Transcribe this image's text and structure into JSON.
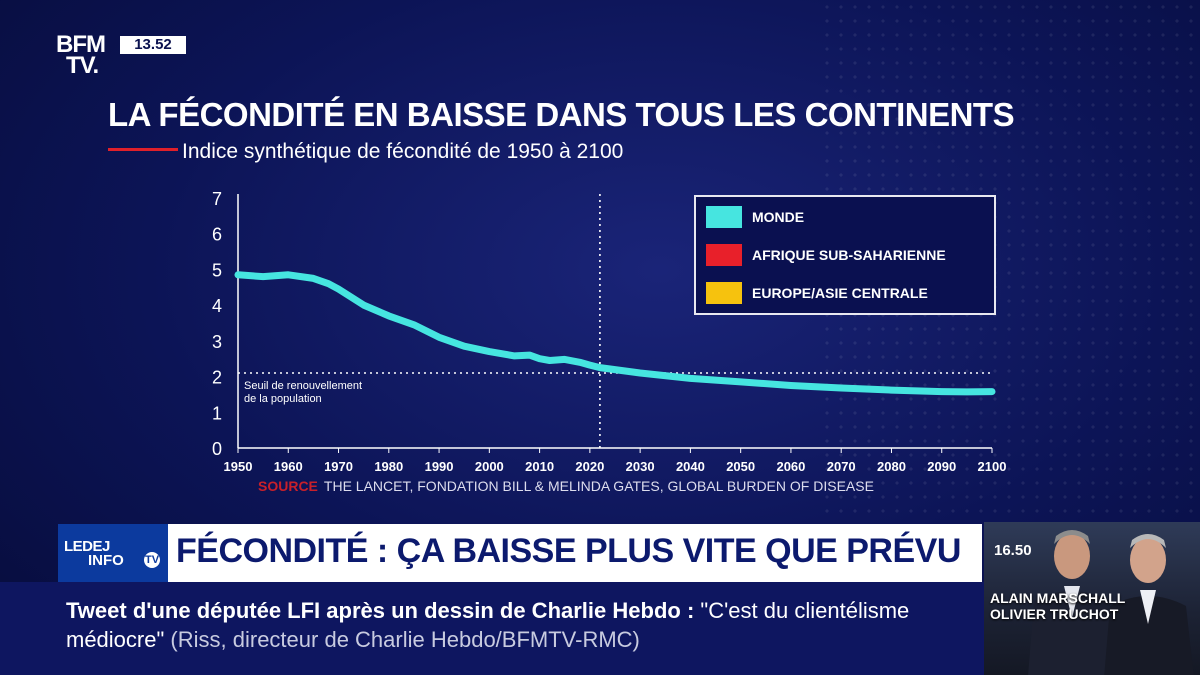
{
  "channel": {
    "logo_line1": "BFM",
    "logo_line2": "TV.",
    "clock": "13.52"
  },
  "chart_title": "LA FÉCONDITÉ EN BAISSE DANS TOUS LES CONTINENTS",
  "chart_subtitle": "Indice synthétique de fécondité de 1950 à 2100",
  "chart_data": {
    "type": "line",
    "title": "LA FÉCONDITÉ EN BAISSE DANS TOUS LES CONTINENTS",
    "subtitle": "Indice synthétique de fécondité de 1950 à 2100",
    "xlim": [
      1950,
      2100
    ],
    "ylim": [
      0,
      7
    ],
    "x_ticks": [
      "1950",
      "1960",
      "1970",
      "1980",
      "1990",
      "2000",
      "2010",
      "2020",
      "2030",
      "2040",
      "2050",
      "2060",
      "2070",
      "2080",
      "2090",
      "2100"
    ],
    "y_ticks": [
      "0",
      "1",
      "2",
      "3",
      "4",
      "5",
      "6",
      "7"
    ],
    "reference_line": {
      "y": 2.1,
      "label_line1": "Seuil de renouvellement",
      "label_line2": "de la population"
    },
    "current_year_marker": 2022,
    "series": [
      {
        "name": "MONDE",
        "color": "#46e5e0",
        "x": [
          1950,
          1955,
          1960,
          1965,
          1968,
          1970,
          1975,
          1980,
          1985,
          1990,
          1995,
          2000,
          2005,
          2008,
          2010,
          2012,
          2015,
          2018,
          2020,
          2022,
          2030,
          2040,
          2050,
          2060,
          2070,
          2080,
          2090,
          2095,
          2100
        ],
        "y": [
          4.85,
          4.8,
          4.85,
          4.75,
          4.6,
          4.45,
          4.0,
          3.7,
          3.45,
          3.1,
          2.85,
          2.7,
          2.58,
          2.6,
          2.5,
          2.45,
          2.48,
          2.4,
          2.32,
          2.25,
          2.1,
          1.95,
          1.85,
          1.75,
          1.68,
          1.62,
          1.58,
          1.57,
          1.58
        ]
      },
      {
        "name": "AFRIQUE SUB-SAHARIENNE",
        "color": "#e8202a",
        "x": [],
        "y": []
      },
      {
        "name": "EUROPE/ASIE CENTRALE",
        "color": "#f6c20e",
        "x": [],
        "y": []
      }
    ]
  },
  "source": {
    "keyword": "SOURCE",
    "text": "THE LANCET, FONDATION BILL & MELINDA GATES, GLOBAL BURDEN OF DISEASE"
  },
  "banner": {
    "show_name_a": "LEDEJ",
    "show_name_b": "INFO",
    "show_badge": "TV",
    "headline": "FÉCONDITÉ : ÇA BAISSE PLUS VITE QUE PRÉVU"
  },
  "ticker": {
    "headline": "Tweet d'une députée LFI après un dessin de Charlie Hebdo",
    "separator": ":",
    "quote": "\"C'est du clientélisme médiocre\"",
    "attribution": "(Riss, directeur de Charlie Hebdo/BFMTV-RMC)"
  },
  "presenters": {
    "time": "16.50",
    "name1": "ALAIN MARSCHALL",
    "name2": "OLIVIER TRUCHOT"
  }
}
